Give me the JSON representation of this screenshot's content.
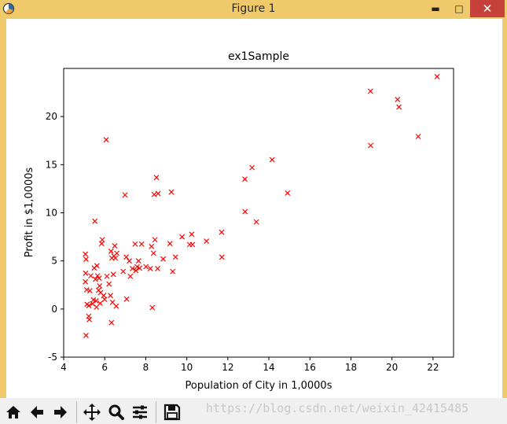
{
  "window": {
    "title": "Figure 1",
    "controls": {
      "minimize": "▬",
      "maximize": "□",
      "close": "✕"
    }
  },
  "toolbar": {
    "buttons": [
      {
        "name": "home-icon"
      },
      {
        "name": "back-icon"
      },
      {
        "name": "forward-icon"
      },
      {
        "name": "pan-icon"
      },
      {
        "name": "zoom-icon"
      },
      {
        "name": "subplots-icon"
      },
      {
        "name": "save-icon"
      }
    ]
  },
  "watermark": "https://blog.csdn.net/weixin_42415485",
  "colors": {
    "marker": "#ff0000",
    "titlebar": "#f0c96b",
    "close": "#c7413b"
  },
  "chart_data": {
    "type": "scatter",
    "title": "ex1Sample",
    "xlabel": "Population of City in 1,0000s",
    "ylabel": "Profit in $1,0000s",
    "xlim": [
      4,
      23
    ],
    "ylim": [
      -5,
      25
    ],
    "xticks": [
      "4",
      "6",
      "8",
      "10",
      "12",
      "14",
      "16",
      "18",
      "20",
      "22"
    ],
    "yticks": [
      "-5",
      "0",
      "5",
      "10",
      "15",
      "20"
    ],
    "marker": "x",
    "grid": false,
    "points": [
      [
        5.06,
        5.7
      ],
      [
        5.09,
        5.17
      ],
      [
        5.07,
        3.72
      ],
      [
        5.06,
        2.83
      ],
      [
        5.09,
        -2.75
      ],
      [
        5.12,
        2.0
      ],
      [
        5.14,
        0.48
      ],
      [
        5.22,
        -0.75
      ],
      [
        5.23,
        0.35
      ],
      [
        5.25,
        -1.1
      ],
      [
        5.28,
        1.9
      ],
      [
        5.32,
        3.45
      ],
      [
        5.4,
        0.55
      ],
      [
        5.45,
        0.95
      ],
      [
        5.49,
        4.26
      ],
      [
        5.52,
        9.13
      ],
      [
        5.55,
        3.1
      ],
      [
        5.58,
        0.85
      ],
      [
        5.6,
        0.2
      ],
      [
        5.62,
        4.5
      ],
      [
        5.65,
        3.45
      ],
      [
        5.7,
        1.95
      ],
      [
        5.73,
        3.2
      ],
      [
        5.75,
        2.4
      ],
      [
        5.78,
        0.6
      ],
      [
        5.8,
        1.7
      ],
      [
        5.85,
        6.8
      ],
      [
        5.88,
        7.2
      ],
      [
        5.95,
        1.4
      ],
      [
        6.0,
        1.0
      ],
      [
        6.07,
        17.59
      ],
      [
        6.11,
        3.4
      ],
      [
        6.21,
        2.6
      ],
      [
        6.28,
        1.4
      ],
      [
        6.31,
        6.0
      ],
      [
        6.33,
        -1.42
      ],
      [
        6.35,
        5.3
      ],
      [
        6.38,
        0.7
      ],
      [
        6.42,
        3.6
      ],
      [
        6.45,
        5.5
      ],
      [
        6.49,
        6.56
      ],
      [
        6.52,
        5.3
      ],
      [
        6.56,
        0.3
      ],
      [
        6.59,
        5.8
      ],
      [
        6.9,
        3.9
      ],
      [
        6.99,
        11.85
      ],
      [
        7.05,
        5.4
      ],
      [
        7.07,
        1.03
      ],
      [
        7.2,
        5.0
      ],
      [
        7.25,
        3.4
      ],
      [
        7.35,
        4.2
      ],
      [
        7.48,
        6.75
      ],
      [
        7.52,
        4.0
      ],
      [
        7.58,
        4.4
      ],
      [
        7.65,
        5.0
      ],
      [
        7.7,
        4.25
      ],
      [
        7.8,
        6.75
      ],
      [
        8.01,
        4.4
      ],
      [
        8.22,
        4.2
      ],
      [
        8.28,
        6.5
      ],
      [
        8.32,
        0.15
      ],
      [
        8.38,
        5.8
      ],
      [
        8.41,
        11.9
      ],
      [
        8.45,
        7.2
      ],
      [
        8.52,
        13.66
      ],
      [
        8.58,
        4.2
      ],
      [
        8.6,
        12.0
      ],
      [
        8.85,
        5.2
      ],
      [
        9.18,
        6.8
      ],
      [
        9.25,
        12.15
      ],
      [
        9.31,
        3.9
      ],
      [
        9.45,
        5.4
      ],
      [
        9.77,
        7.5
      ],
      [
        10.14,
        6.7
      ],
      [
        10.24,
        7.77
      ],
      [
        10.28,
        6.7
      ],
      [
        10.96,
        7.05
      ],
      [
        11.7,
        7.98
      ],
      [
        11.71,
        5.39
      ],
      [
        12.83,
        13.5
      ],
      [
        12.84,
        10.12
      ],
      [
        13.18,
        14.69
      ],
      [
        13.39,
        9.05
      ],
      [
        14.16,
        15.51
      ],
      [
        14.91,
        12.05
      ],
      [
        18.95,
        22.64
      ],
      [
        18.96,
        17.0
      ],
      [
        20.27,
        21.77
      ],
      [
        20.34,
        20.99
      ],
      [
        21.28,
        17.93
      ],
      [
        22.2,
        24.15
      ]
    ]
  }
}
